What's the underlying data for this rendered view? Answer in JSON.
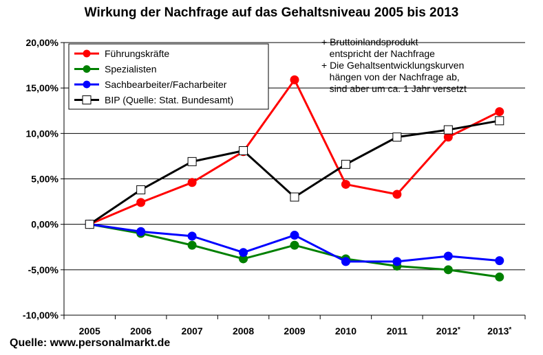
{
  "title": "Wirkung der Nachfrage auf das Gehaltsniveau 2005 bis 2013",
  "source": "Quelle: www.personalmarkt.de",
  "notes": [
    "+ Bruttoinlandsprodukt",
    "   entspricht der Nachfrage",
    "+ Die Gehaltsentwicklungskurven",
    "   hängen von der Nachfrage ab,",
    "   sind aber um ca. 1 Jahr versetzt"
  ],
  "chart_data": {
    "type": "line",
    "title": "Wirkung der Nachfrage auf das Gehaltsniveau 2005 bis 2013",
    "xlabel": "",
    "ylabel": "",
    "categories": [
      "2005",
      "2006",
      "2007",
      "2008",
      "2009",
      "2010",
      "2011",
      "2012*",
      "2013*"
    ],
    "ylim": [
      -10,
      20
    ],
    "yticks": [
      -10,
      -5,
      0,
      5,
      10,
      15,
      20
    ],
    "ytick_labels": [
      "-10,00%",
      "-5,00%",
      "0,00%",
      "5,00%",
      "10,00%",
      "15,00%",
      "20,00%"
    ],
    "grid": true,
    "legend_position": "top-left",
    "series": [
      {
        "name": "Führungskräfte",
        "color": "#ff0000",
        "marker": "circle",
        "values": [
          0,
          2.4,
          4.6,
          8.0,
          15.9,
          4.4,
          3.3,
          9.6,
          12.4
        ]
      },
      {
        "name": "Spezialisten",
        "color": "#008000",
        "marker": "circle",
        "values": [
          0,
          -1.0,
          -2.3,
          -3.8,
          -2.3,
          -3.8,
          -4.6,
          -5.0,
          -5.8
        ]
      },
      {
        "name": "Sachbearbeiter/Facharbeiter",
        "color": "#0000ff",
        "marker": "circle",
        "values": [
          0,
          -0.8,
          -1.3,
          -3.1,
          -1.2,
          -4.1,
          -4.1,
          -3.5,
          -4.0
        ]
      },
      {
        "name": "BIP (Quelle: Stat. Bundesamt)",
        "color": "#000000",
        "marker": "square",
        "values": [
          0,
          3.8,
          6.9,
          8.1,
          3.0,
          6.6,
          9.6,
          10.4,
          11.4
        ]
      }
    ]
  }
}
